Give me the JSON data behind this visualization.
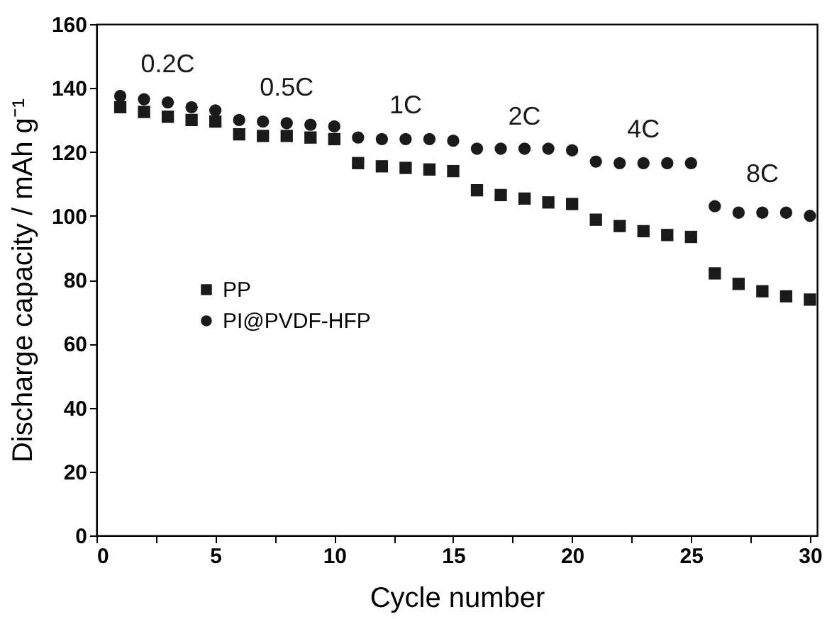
{
  "chart_data": {
    "type": "scatter",
    "xlabel": "Cycle number",
    "ylabel": "Discharge capacity / mAh g⁻¹",
    "x": [
      1,
      2,
      3,
      4,
      5,
      6,
      7,
      8,
      9,
      10,
      11,
      12,
      13,
      14,
      15,
      16,
      17,
      18,
      19,
      20,
      21,
      22,
      23,
      24,
      25,
      26,
      27,
      28,
      29,
      30
    ],
    "series": [
      {
        "name": "PP",
        "color": "#1a1a1a",
        "marker": "square",
        "values": [
          134,
          132.5,
          131,
          130,
          129.5,
          125.5,
          125,
          125,
          124.5,
          124,
          116.5,
          115.5,
          115,
          114.5,
          114,
          108,
          106.5,
          105.4,
          104.2,
          103.7,
          98.8,
          96.8,
          95.2,
          94,
          93.4,
          82,
          78.7,
          76.4,
          74.8,
          73.8
        ]
      },
      {
        "name": "PI@PVDF-HFP",
        "color": "#1a1a1a",
        "marker": "circle",
        "values": [
          137.5,
          136.5,
          135.5,
          134,
          133,
          130,
          129.5,
          129,
          128.5,
          128,
          124.5,
          124,
          124,
          124,
          123.5,
          121,
          121,
          121,
          121,
          120.5,
          117,
          116.5,
          116.5,
          116.5,
          116.5,
          103,
          101,
          101,
          101,
          100
        ]
      }
    ],
    "annotations": [
      "0.2C",
      "0.5C",
      "1C",
      "2C",
      "4C",
      "8C"
    ],
    "xlim": [
      0,
      30.3
    ],
    "ylim": [
      0,
      160
    ],
    "xticks": [
      0,
      {
        "value": 2.5,
        "label": null
      },
      5,
      {
        "value": 7.5,
        "label": null
      },
      10,
      {
        "value": 12.5,
        "label": null
      },
      15,
      {
        "value": 17.5,
        "label": null
      },
      20,
      {
        "value": 22.5,
        "label": null
      },
      25,
      {
        "value": 27.5,
        "label": null
      },
      30
    ],
    "yticks": [
      0,
      20,
      40,
      60,
      80,
      100,
      120,
      140,
      160
    ],
    "legend": "left",
    "grid": false
  }
}
